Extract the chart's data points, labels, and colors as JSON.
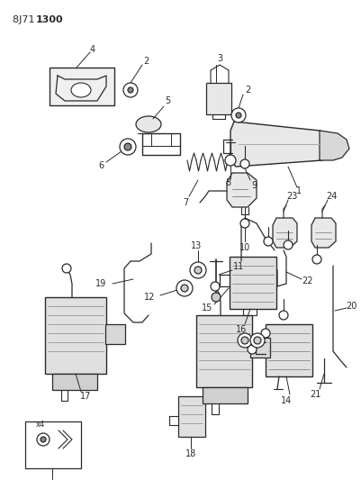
{
  "title_normal": "8J71 ",
  "title_bold": "1300",
  "bg_color": "#ffffff",
  "lc": "#2a2a2a",
  "figsize": [
    4.01,
    5.33
  ],
  "dpi": 100,
  "xlim": [
    0,
    401
  ],
  "ylim": [
    0,
    533
  ]
}
